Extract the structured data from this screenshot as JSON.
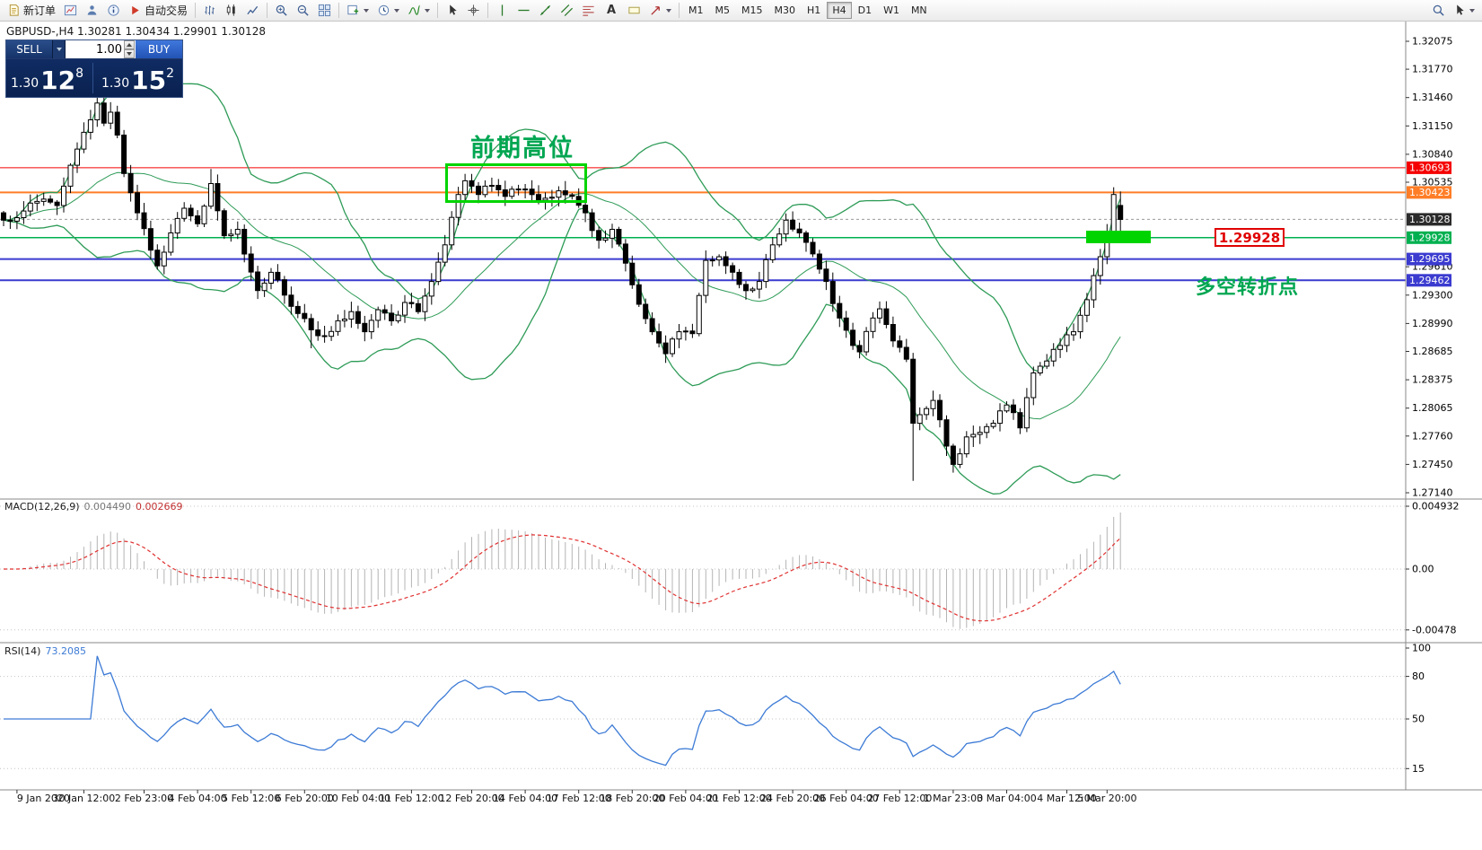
{
  "toolbar": {
    "new_order_label": "新订单",
    "autotrading_label": "自动交易",
    "text_tool_label": "A",
    "timeframes": [
      "M1",
      "M5",
      "M15",
      "M30",
      "H1",
      "H4",
      "D1",
      "W1",
      "MN"
    ],
    "active_timeframe": "H4"
  },
  "chart": {
    "symbol_title": "GBPUSD-,H4 1.30281 1.30434 1.29901 1.30128"
  },
  "one_click": {
    "sell_label": "SELL",
    "buy_label": "BUY",
    "volume": "1.00",
    "sell_price": {
      "big_figure": "1.30",
      "pips": "12",
      "pipette": "8"
    },
    "buy_price": {
      "big_figure": "1.30",
      "pips": "15",
      "pipette": "2"
    }
  },
  "annotations": {
    "previous_high_label": "前期高位",
    "turning_point_label": "多空转折点",
    "price_callout": "1.29928"
  },
  "chart_data": {
    "type": "candlestick",
    "symbol": "GBPUSD-",
    "timeframe": "H4",
    "current_quote": {
      "open": 1.30281,
      "high": 1.30434,
      "low": 1.29901,
      "close": 1.30128
    },
    "price_axis": {
      "min": 1.2714,
      "max": 1.32075,
      "plain_ticks": [
        "1.32075",
        "1.31770",
        "1.31460",
        "1.31150",
        "1.30840",
        "1.30535",
        "1.29610",
        "1.29300",
        "1.28990",
        "1.28685",
        "1.28375",
        "1.28065",
        "1.27760",
        "1.27450",
        "1.27140"
      ]
    },
    "hlines": [
      {
        "price": 1.30693,
        "label": "1.30693",
        "color": "#f50000",
        "width": 1
      },
      {
        "price": 1.30423,
        "label": "1.30423",
        "color": "#ff7d26",
        "width": 2
      },
      {
        "price": 1.29928,
        "label": "1.29928",
        "color": "#00b050",
        "width": 1.5
      },
      {
        "price": 1.29695,
        "label": "1.29695",
        "color": "#3b3bd0",
        "width": 2
      },
      {
        "price": 1.29462,
        "label": "1.29462",
        "color": "#3b3bd0",
        "width": 2
      }
    ],
    "current_price": {
      "value": 1.30128,
      "label": "1.30128",
      "badge_color": "#2b2b2b"
    },
    "candles": {
      "count": 168,
      "seed": 7,
      "close_path": [
        [
          0,
          1.3012
        ],
        [
          3,
          1.3022
        ],
        [
          6,
          1.3035
        ],
        [
          8,
          1.3028
        ],
        [
          10,
          1.3072
        ],
        [
          12,
          1.3108
        ],
        [
          14,
          1.314
        ],
        [
          15,
          1.3118
        ],
        [
          16,
          1.313
        ],
        [
          17,
          1.3105
        ],
        [
          18,
          1.3063
        ],
        [
          20,
          1.302
        ],
        [
          23,
          1.2962
        ],
        [
          25,
          1.2998
        ],
        [
          27,
          1.3025
        ],
        [
          29,
          1.3008
        ],
        [
          31,
          1.3052
        ],
        [
          33,
          1.2995
        ],
        [
          35,
          1.3002
        ],
        [
          36,
          1.2975
        ],
        [
          38,
          1.2935
        ],
        [
          40,
          1.2955
        ],
        [
          42,
          1.293
        ],
        [
          44,
          1.291
        ],
        [
          46,
          1.2892
        ],
        [
          48,
          1.2885
        ],
        [
          50,
          1.2902
        ],
        [
          52,
          1.2912
        ],
        [
          54,
          1.289
        ],
        [
          56,
          1.2914
        ],
        [
          58,
          1.2902
        ],
        [
          60,
          1.2922
        ],
        [
          62,
          1.2912
        ],
        [
          64,
          1.2945
        ],
        [
          66,
          1.2985
        ],
        [
          67,
          1.3015
        ],
        [
          68,
          1.304
        ],
        [
          69,
          1.3055
        ],
        [
          71,
          1.304
        ],
        [
          73,
          1.305
        ],
        [
          75,
          1.3038
        ],
        [
          77,
          1.3046
        ],
        [
          79,
          1.304
        ],
        [
          81,
          1.3036
        ],
        [
          83,
          1.3044
        ],
        [
          85,
          1.3038
        ],
        [
          87,
          1.302
        ],
        [
          89,
          1.299
        ],
        [
          91,
          1.3002
        ],
        [
          93,
          1.2965
        ],
        [
          95,
          1.292
        ],
        [
          97,
          1.289
        ],
        [
          99,
          1.2866
        ],
        [
          101,
          1.289
        ],
        [
          103,
          1.2888
        ],
        [
          105,
          1.2968
        ],
        [
          107,
          1.2972
        ],
        [
          109,
          1.2955
        ],
        [
          111,
          1.2935
        ],
        [
          113,
          1.2945
        ],
        [
          115,
          1.2985
        ],
        [
          117,
          1.3012
        ],
        [
          119,
          1.2998
        ],
        [
          121,
          1.2975
        ],
        [
          123,
          1.2945
        ],
        [
          125,
          1.2905
        ],
        [
          127,
          1.2875
        ],
        [
          128,
          1.2868
        ],
        [
          130,
          1.2905
        ],
        [
          131,
          1.2915
        ],
        [
          133,
          1.288
        ],
        [
          135,
          1.286
        ],
        [
          136,
          1.279
        ],
        [
          138,
          1.2806
        ],
        [
          139,
          1.2815
        ],
        [
          141,
          1.2765
        ],
        [
          142,
          1.2745
        ],
        [
          144,
          1.2775
        ],
        [
          146,
          1.278
        ],
        [
          148,
          1.279
        ],
        [
          150,
          1.281
        ],
        [
          152,
          1.2785
        ],
        [
          154,
          1.2845
        ],
        [
          156,
          1.2858
        ],
        [
          158,
          1.2875
        ],
        [
          160,
          1.289
        ],
        [
          162,
          1.2925
        ],
        [
          164,
          1.2972
        ],
        [
          165,
          1.2998
        ],
        [
          166,
          1.304
        ],
        [
          167,
          1.30128
        ]
      ],
      "wick_overrides": {
        "14": {
          "high": 1.3151
        },
        "31": {
          "high": 1.3068
        },
        "46": {
          "low": 1.2872
        },
        "99": {
          "low": 1.2856
        },
        "128": {
          "low": 1.2861
        },
        "136": {
          "low": 1.2727
        },
        "142": {
          "low": 1.2736
        },
        "166": {
          "high": 1.3048
        }
      }
    },
    "bollinger": {
      "period": 20,
      "deviation": 2,
      "color": "#2e9b57"
    },
    "macd": {
      "label": "MACD(12,26,9)",
      "value_main": "0.004490",
      "value_signal": "0.002669",
      "fast": 12,
      "slow": 26,
      "signal_period": 9,
      "histogram_color": "#b4b4b4",
      "signal_color": "#e03030",
      "scale_ticks": [
        {
          "value": 0.004932,
          "label": "0.004932"
        },
        {
          "value": 0,
          "label": "0.00"
        },
        {
          "value": -0.00478,
          "label": "-0.00478"
        }
      ]
    },
    "rsi": {
      "label": "RSI(14)",
      "value_label": "73.2085",
      "period": 14,
      "color": "#3d7bd6",
      "levels": [
        {
          "value": 100,
          "label": "100",
          "line": false
        },
        {
          "value": 80,
          "label": "80",
          "line": true
        },
        {
          "value": 50,
          "label": "50",
          "line": true
        },
        {
          "value": 15,
          "label": "15",
          "line": true
        }
      ]
    },
    "time_axis": [
      [
        2,
        "9 Jan 2020"
      ],
      [
        12,
        "30 Jan 12:00"
      ],
      [
        21,
        "2 Feb 23:00"
      ],
      [
        29,
        "4 Feb 04:00"
      ],
      [
        37,
        "5 Feb 12:00"
      ],
      [
        45,
        "6 Feb 20:00"
      ],
      [
        53,
        "10 Feb 04:00"
      ],
      [
        61,
        "11 Feb 12:00"
      ],
      [
        70,
        "12 Feb 20:00"
      ],
      [
        78,
        "14 Feb 04:00"
      ],
      [
        86,
        "17 Feb 12:00"
      ],
      [
        94,
        "18 Feb 20:00"
      ],
      [
        102,
        "20 Feb 04:00"
      ],
      [
        110,
        "21 Feb 12:00"
      ],
      [
        118,
        "24 Feb 20:00"
      ],
      [
        126,
        "26 Feb 04:00"
      ],
      [
        134,
        "27 Feb 12:00"
      ],
      [
        142,
        "1 Mar 23:00"
      ],
      [
        150,
        "3 Mar 04:00"
      ],
      [
        159,
        "4 Mar 12:00"
      ],
      [
        165,
        "5 Mar 20:00"
      ]
    ]
  }
}
